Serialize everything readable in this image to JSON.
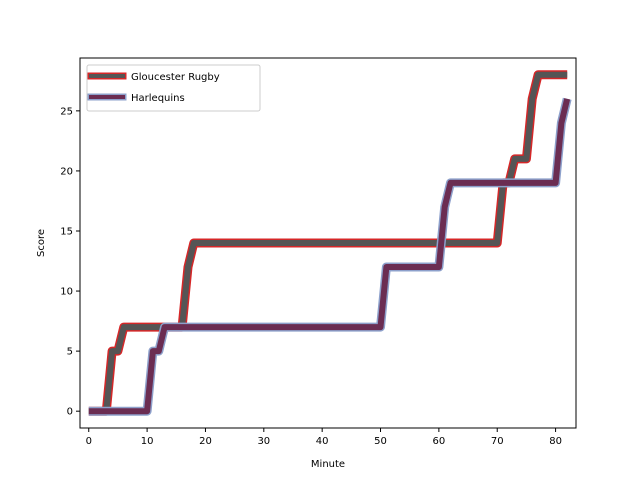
{
  "chart_data": {
    "type": "line",
    "title": "",
    "xlabel": "Minute",
    "ylabel": "Score",
    "xlim": [
      -1.5,
      83.5
    ],
    "ylim": [
      -1.4,
      29.4
    ],
    "xticks": [
      0,
      10,
      20,
      30,
      40,
      50,
      60,
      70,
      80
    ],
    "yticks": [
      0,
      5,
      10,
      15,
      20,
      25
    ],
    "grid": false,
    "legend_position": "upper-left",
    "series": [
      {
        "name": "Gloucester Rugby",
        "outer_color": "#d62728",
        "inner_color": "#555555",
        "x": [
          0,
          3,
          4,
          5,
          6,
          7,
          15,
          16,
          17,
          18,
          59,
          60,
          69,
          70,
          71,
          72,
          73,
          75,
          76,
          77,
          78,
          82
        ],
        "y": [
          0,
          0,
          5,
          5,
          7,
          7,
          7,
          7,
          12,
          14,
          14,
          14,
          14,
          14,
          19,
          19,
          21,
          21,
          26,
          28,
          28,
          28
        ]
      },
      {
        "name": "Harlequins",
        "outer_color": "#8da0cb",
        "inner_color": "#6b2d52",
        "x": [
          0,
          10,
          11,
          12,
          13,
          50,
          51,
          60,
          61,
          62,
          70,
          80,
          81,
          82
        ],
        "y": [
          0,
          0,
          5,
          5,
          7,
          7,
          12,
          12,
          17,
          19,
          19,
          19,
          24,
          26
        ]
      }
    ]
  }
}
